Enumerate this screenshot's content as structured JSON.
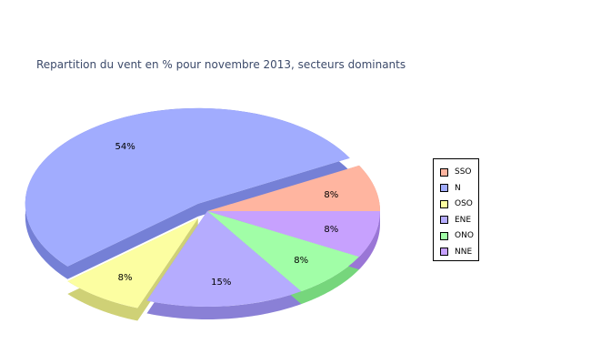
{
  "chart_data": {
    "type": "pie",
    "title": "Repartition du vent en % pour novembre 2013, secteurs dominants",
    "slices": [
      {
        "name": "SSO",
        "value": 8,
        "label": "8%",
        "color": "#ffb5a0",
        "side": "#d48a78"
      },
      {
        "name": "N",
        "value": 54,
        "label": "54%",
        "color": "#a1acfe",
        "side": "#7580d6",
        "exploded": true
      },
      {
        "name": "OSO",
        "value": 8,
        "label": "8%",
        "color": "#fcfea1",
        "side": "#cfd176",
        "exploded": true
      },
      {
        "name": "ENE",
        "value": 15,
        "label": "15%",
        "color": "#b5acfe",
        "side": "#8a80d6"
      },
      {
        "name": "ONO",
        "value": 8,
        "label": "8%",
        "color": "#a1fea7",
        "side": "#76d67c"
      },
      {
        "name": "NNE",
        "value": 8,
        "label": "8%",
        "color": "#c7a1fe",
        "side": "#9a76d6"
      }
    ],
    "legend_position": "right"
  }
}
